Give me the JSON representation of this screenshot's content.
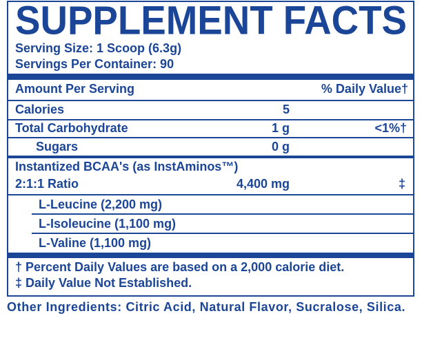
{
  "header": {
    "title": "SUPPLEMENT FACTS",
    "serving_size": "Serving Size: 1 Scoop (6.3g)",
    "servings_per_container": "Servings Per Container: 90"
  },
  "table": {
    "columns": [
      "Amount Per Serving",
      "% Daily Value†"
    ],
    "rows": [
      [
        "Calories",
        "5",
        ""
      ],
      [
        "Total Carbohydrate",
        "1 g",
        "<1%†"
      ],
      [
        "Sugars",
        "0 g",
        ""
      ]
    ],
    "blend": {
      "name": "Instantized BCAA's (as InstAminos™)",
      "ratio": "2:1:1 Ratio",
      "amount": "4,400 mg",
      "dv": "‡",
      "items": [
        "L-Leucine (2,200 mg)",
        "L-Isoleucine (1,100 mg)",
        "L-Valine (1,100 mg)"
      ]
    }
  },
  "footnotes": [
    "† Percent Daily Values are based on a 2,000 calorie diet.",
    "‡ Daily Value Not Established."
  ],
  "other_ingredients": {
    "label": "Other Ingredients:",
    "text": "Citric Acid, Natural Flavor, Sucralose, Silica."
  }
}
